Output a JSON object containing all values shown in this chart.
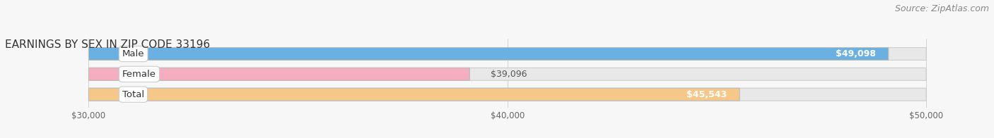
{
  "title": "EARNINGS BY SEX IN ZIP CODE 33196",
  "source": "Source: ZipAtlas.com",
  "categories": [
    "Male",
    "Female",
    "Total"
  ],
  "values": [
    49098,
    39096,
    45543
  ],
  "bar_colors": [
    "#6ab0e0",
    "#f5aec0",
    "#f5c88a"
  ],
  "bar_bg_color": "#e8e8e8",
  "bar_border_color": [
    "#c8c8c8",
    "#c8c8c8",
    "#c8c8c8"
  ],
  "value_labels": [
    "$49,098",
    "$39,096",
    "$45,543"
  ],
  "xmin": 30000,
  "xmax": 50000,
  "xticks": [
    30000,
    40000,
    50000
  ],
  "xtick_labels": [
    "$30,000",
    "$40,000",
    "$50,000"
  ],
  "background_color": "#f7f7f7",
  "title_fontsize": 11,
  "source_fontsize": 9,
  "label_fontsize": 9.5,
  "value_fontsize": 9,
  "tick_fontsize": 8.5
}
